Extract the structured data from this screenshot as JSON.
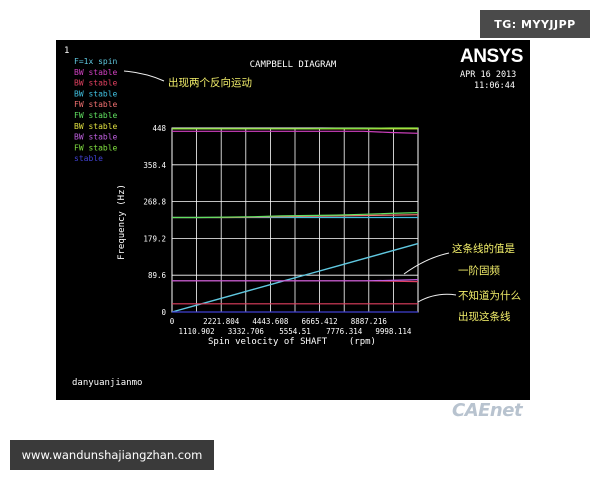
{
  "watermark_top": "TG: MYYJJPP",
  "watermark_bottom": "www.wandunshajiangzhan.com",
  "logo_text": "CAEnet",
  "window_number": "1",
  "ansys_logo": "ANSYS",
  "date": "APR 16 2013",
  "time": "11:06:44",
  "user": "danyuanjianmo",
  "annotations": [
    {
      "text": "出现两个反向运动",
      "color": "#f2ee6a"
    },
    {
      "text": "这条线的值是",
      "color": "#f2ee6a"
    },
    {
      "text": "一阶固频",
      "color": "#f2ee6a"
    },
    {
      "text": "不知道为什么",
      "color": "#f2ee6a"
    },
    {
      "text": "出现这条线",
      "color": "#f2ee6a"
    }
  ],
  "legend": [
    {
      "label": "F=1x spin",
      "color": "#60c8e0"
    },
    {
      "label": "BW stable",
      "color": "#d040c0"
    },
    {
      "label": "BW stable",
      "color": "#e04060"
    },
    {
      "label": "BW stable",
      "color": "#40c0e0"
    },
    {
      "label": "FW stable",
      "color": "#f07070"
    },
    {
      "label": "FW stable",
      "color": "#60e060"
    },
    {
      "label": "BW stable",
      "color": "#e0e040"
    },
    {
      "label": "BW stable",
      "color": "#c060e0"
    },
    {
      "label": "FW stable",
      "color": "#80e040"
    },
    {
      "label": "stable",
      "color": "#4040d0"
    }
  ],
  "chart_data": {
    "type": "line",
    "title": "CAMPBELL DIAGRAM",
    "xlabel": "Spin velocity of SHAFT    (rpm)",
    "ylabel": "Frequency (Hz)",
    "xlim": [
      0,
      9998.114
    ],
    "ylim": [
      0,
      448
    ],
    "x_tick_labels_upper": [
      "0",
      "2221.804",
      "4443.608",
      "6665.412",
      "8887.216"
    ],
    "x_tick_labels_lower": [
      "1110.902",
      "3332.706",
      "5554.51",
      "7776.314",
      "9998.114"
    ],
    "y_tick_labels": [
      "0",
      "89.6",
      "179.2",
      "268.8",
      "358.4",
      "448"
    ],
    "x": [
      0,
      1110.902,
      2221.804,
      3332.706,
      4443.608,
      5554.51,
      6665.412,
      7776.314,
      8887.216,
      9998.114
    ],
    "series": [
      {
        "name": "F=1x spin",
        "color": "#60c8e0",
        "values": [
          0,
          18.5,
          37.0,
          55.5,
          74.1,
          92.6,
          111.1,
          129.6,
          148.1,
          166.6
        ]
      },
      {
        "name": "BW stable",
        "color": "#d040c0",
        "values": [
          440,
          440,
          440,
          440,
          440,
          440,
          440,
          440,
          437,
          435
        ]
      },
      {
        "name": "BW stable",
        "color": "#e04060",
        "values": [
          76,
          76,
          76,
          76,
          76,
          76,
          76,
          76,
          75,
          74
        ]
      },
      {
        "name": "BW stable",
        "color": "#40c0e0",
        "values": [
          230,
          230,
          230,
          230,
          230,
          230,
          230,
          230,
          230,
          230
        ]
      },
      {
        "name": "FW stable",
        "color": "#f07070",
        "values": [
          230,
          230,
          230,
          231,
          232,
          233,
          234,
          235,
          236,
          237
        ]
      },
      {
        "name": "FW stable",
        "color": "#60e060",
        "values": [
          230,
          230,
          231,
          232,
          234,
          235,
          236,
          238,
          240,
          242
        ]
      },
      {
        "name": "BW stable",
        "color": "#e0e040",
        "values": [
          446,
          446,
          446,
          446,
          446,
          446,
          446,
          446,
          446,
          446
        ]
      },
      {
        "name": "BW stable",
        "color": "#c060e0",
        "values": [
          76,
          76,
          76,
          76,
          76,
          76,
          76,
          76,
          77,
          79
        ]
      },
      {
        "name": "FW stable",
        "color": "#80e040",
        "values": [
          446,
          446,
          446,
          446,
          446,
          446,
          447,
          447,
          448,
          448
        ]
      },
      {
        "name": "stable",
        "color": "#4040d0",
        "values": [
          0,
          0,
          0,
          0,
          0,
          0,
          0,
          0,
          0,
          0
        ]
      },
      {
        "name": "stable",
        "color": "#e04060",
        "values": [
          20,
          20,
          20,
          20,
          20,
          20,
          20,
          20,
          20,
          20
        ]
      }
    ],
    "grid": true,
    "legend_position": "top-left"
  }
}
